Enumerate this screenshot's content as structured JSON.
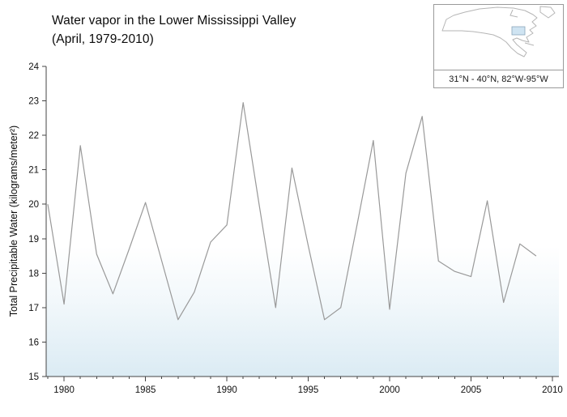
{
  "title": {
    "line1": "Water vapor in the Lower Mississippi Valley",
    "line2": "(April, 1979-2010)"
  },
  "inset": {
    "caption": "31°N - 40°N, 82°W-95°W",
    "region_fill": "#cfe4f2"
  },
  "chart_data": {
    "type": "line",
    "title": "Water vapor in the Lower Mississippi Valley (April, 1979-2010)",
    "ylabel": "Total Precipitable Water (kilograms/meter²)",
    "xlabel": "",
    "x": [
      1979,
      1980,
      1981,
      1982,
      1983,
      1984,
      1985,
      1986,
      1987,
      1988,
      1989,
      1990,
      1991,
      1992,
      1993,
      1994,
      1995,
      1996,
      1997,
      1998,
      1999,
      2000,
      2001,
      2002,
      2003,
      2004,
      2005,
      2006,
      2007,
      2008,
      2009
    ],
    "values": [
      20.0,
      17.1,
      21.7,
      18.55,
      17.4,
      18.7,
      20.05,
      18.35,
      16.65,
      17.45,
      18.9,
      19.4,
      22.95,
      19.95,
      17.0,
      21.05,
      18.8,
      16.65,
      17.0,
      19.4,
      21.85,
      16.95,
      20.9,
      22.55,
      18.35,
      18.05,
      17.9,
      20.1,
      17.15,
      18.85,
      18.5
    ],
    "xlim": [
      1978.9,
      2010.4
    ],
    "ylim": [
      15,
      24
    ],
    "yticks": [
      15,
      16,
      17,
      18,
      19,
      20,
      21,
      22,
      23,
      24
    ],
    "xticks": [
      1980,
      1985,
      1990,
      1995,
      2000,
      2005,
      2010
    ],
    "grid": false,
    "legend": "none",
    "line_color": "#999999",
    "background_gradient_color": "#d9eaf3"
  }
}
